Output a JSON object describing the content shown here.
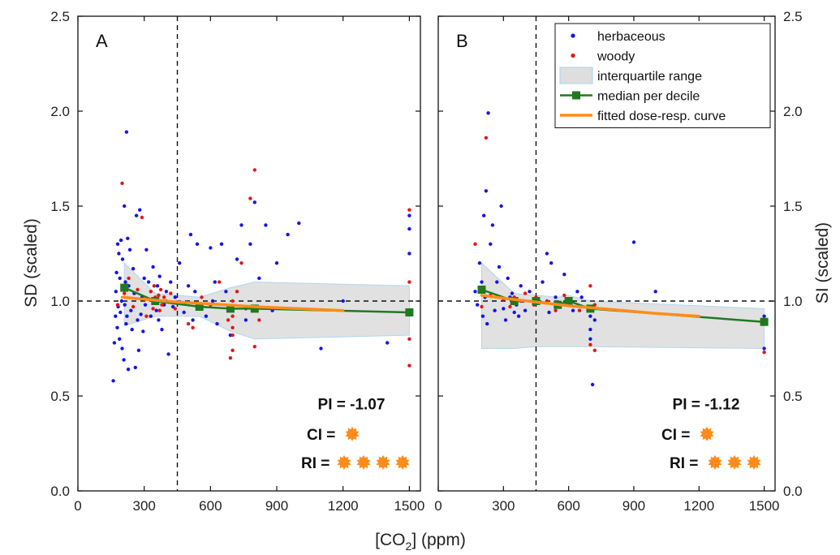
{
  "figure": {
    "xlabel": "[CO",
    "xlabel_sub": "2",
    "xlabel_tail": "] (ppm)",
    "ylabel_left": "SD (scaled)",
    "ylabel_right": "SI (scaled)"
  },
  "colors": {
    "herbaceous": "#1515e6",
    "woody": "#e61515",
    "iqr_fill": "#dedede",
    "iqr_stroke": "#a9d3ef",
    "median": "#1f7a1f",
    "fit": "#ff8c1a",
    "ci_star": "#ff8c1a"
  },
  "legend": {
    "items": [
      {
        "label": "herbaceous",
        "kind": "dot",
        "color": "#1515e6"
      },
      {
        "label": "woody",
        "kind": "dot",
        "color": "#e61515"
      },
      {
        "label": "interquartile range",
        "kind": "band",
        "color": "#dedede"
      },
      {
        "label": "median per decile",
        "kind": "median",
        "color": "#1f7a1f"
      },
      {
        "label": "fitted dose-resp. curve",
        "kind": "line",
        "color": "#ff8c1a"
      }
    ]
  },
  "chart_data": [
    {
      "panel": "A",
      "type": "scatter",
      "xlim": [
        0,
        1550
      ],
      "ylim": [
        0,
        2.5
      ],
      "xticks": [
        0,
        300,
        600,
        900,
        1200,
        1500
      ],
      "yticks": [
        0.0,
        0.5,
        1.0,
        1.5,
        2.0,
        2.5
      ],
      "ytick_labels": [
        "0.0",
        "0.5",
        "1.0",
        "1.5",
        "2.0",
        "2.5"
      ],
      "yaxis_labels": "left",
      "ref_vline_x": 450,
      "ref_hline_y": 1.0,
      "pi_text": "PI = -1.07",
      "ci_label": "CI =",
      "ci_stars": 1,
      "ri_label": "RI =",
      "ri_stars": 4,
      "median": {
        "x": [
          210,
          350,
          550,
          690,
          800,
          1500
        ],
        "y": [
          1.07,
          1.0,
          0.97,
          0.96,
          0.96,
          0.94
        ]
      },
      "iqr": {
        "x": [
          210,
          350,
          550,
          690,
          800,
          1500
        ],
        "upper": [
          1.2,
          1.04,
          1.02,
          1.07,
          1.1,
          1.08
        ],
        "lower": [
          0.87,
          0.92,
          0.92,
          0.84,
          0.8,
          0.82
        ]
      },
      "fit": {
        "x": [
          200,
          300,
          450,
          600,
          800,
          1000,
          1200
        ],
        "y": [
          1.02,
          1.01,
          0.995,
          0.985,
          0.97,
          0.96,
          0.95
        ]
      },
      "herbaceous": {
        "x": [
          160,
          165,
          170,
          172,
          175,
          178,
          180,
          182,
          185,
          188,
          190,
          192,
          195,
          198,
          200,
          202,
          205,
          208,
          210,
          212,
          215,
          218,
          220,
          222,
          225,
          228,
          230,
          235,
          240,
          245,
          250,
          255,
          260,
          265,
          270,
          275,
          280,
          285,
          290,
          295,
          300,
          305,
          310,
          320,
          330,
          340,
          350,
          355,
          360,
          365,
          370,
          380,
          390,
          400,
          410,
          420,
          430,
          440,
          460,
          480,
          500,
          510,
          520,
          530,
          540,
          560,
          580,
          600,
          610,
          620,
          630,
          650,
          670,
          690,
          700,
          720,
          740,
          760,
          780,
          800,
          820,
          850,
          880,
          900,
          950,
          1000,
          1100,
          1200,
          1400,
          1500,
          1500,
          1500
        ],
        "y": [
          0.58,
          0.78,
          0.92,
          1.05,
          1.15,
          0.86,
          1.3,
          0.97,
          1.25,
          0.8,
          1.12,
          0.94,
          1.32,
          1.0,
          0.75,
          1.22,
          1.08,
          0.69,
          1.5,
          0.98,
          1.1,
          0.88,
          1.89,
          0.92,
          1.33,
          0.64,
          1.08,
          1.27,
          0.95,
          0.85,
          1.17,
          1.04,
          0.65,
          1.45,
          0.9,
          0.74,
          1.48,
          0.93,
          1.02,
          0.84,
          1.12,
          0.98,
          1.27,
          1.1,
          0.92,
          1.18,
          1.0,
          0.95,
          1.08,
          0.9,
          1.13,
          0.85,
          0.98,
          1.05,
          0.72,
          1.1,
          0.97,
          1.02,
          1.2,
          0.94,
          1.08,
          1.35,
          0.9,
          1.05,
          1.3,
          0.98,
          0.92,
          1.28,
          1.0,
          1.1,
          0.88,
          1.3,
          1.05,
          0.82,
          0.95,
          1.22,
          1.4,
          0.9,
          1.3,
          1.52,
          1.12,
          1.4,
          0.95,
          1.2,
          1.35,
          1.41,
          0.75,
          1.0,
          0.78,
          1.45,
          1.25,
          1.38
        ]
      },
      "woody": {
        "x": [
          180,
          200,
          210,
          230,
          250,
          270,
          290,
          310,
          320,
          330,
          340,
          345,
          350,
          355,
          360,
          365,
          370,
          375,
          380,
          390,
          400,
          420,
          440,
          500,
          520,
          560,
          600,
          640,
          680,
          690,
          700,
          700,
          700,
          700,
          700,
          720,
          740,
          760,
          780,
          800,
          800,
          820,
          1500,
          1500,
          1500,
          1500,
          1500
        ],
        "y": [
          0.98,
          1.62,
          1.04,
          1.12,
          0.97,
          1.06,
          1.44,
          0.92,
          1.01,
          1.05,
          0.96,
          1.08,
          1.02,
          0.99,
          1.0,
          1.03,
          0.95,
          1.06,
          0.98,
          1.02,
          1.0,
          1.04,
          0.96,
          0.88,
          0.86,
          1.02,
          0.98,
          1.1,
          0.9,
          0.7,
          0.82,
          1.0,
          0.74,
          0.92,
          0.86,
          1.05,
          1.2,
          0.96,
          1.54,
          1.69,
          0.76,
          0.9,
          1.48,
          0.66,
          0.8,
          1.1,
          0.95
        ]
      }
    },
    {
      "panel": "B",
      "type": "scatter",
      "xlim": [
        0,
        1550
      ],
      "ylim": [
        0,
        2.5
      ],
      "xticks": [
        0,
        300,
        600,
        900,
        1200,
        1500
      ],
      "yticks": [
        0.0,
        0.5,
        1.0,
        1.5,
        2.0,
        2.5
      ],
      "ytick_labels": [
        "0.0",
        "0.5",
        "1.0",
        "1.5",
        "2.0",
        "2.5"
      ],
      "yaxis_labels": "right",
      "ref_vline_x": 450,
      "ref_hline_y": 1.0,
      "pi_text": "PI = -1.12",
      "ci_label": "CI =",
      "ci_stars": 1,
      "ri_label": "RI =",
      "ri_stars": 3,
      "median": {
        "x": [
          200,
          350,
          450,
          550,
          600,
          700,
          1500
        ],
        "y": [
          1.06,
          1.0,
          1.0,
          0.98,
          1.0,
          0.96,
          0.89
        ]
      },
      "iqr": {
        "x": [
          200,
          350,
          450,
          550,
          600,
          700,
          1500
        ],
        "upper": [
          1.2,
          1.04,
          1.03,
          1.02,
          1.03,
          1.0,
          0.96
        ],
        "lower": [
          0.75,
          0.75,
          0.76,
          0.76,
          0.76,
          0.76,
          0.75
        ]
      },
      "fit": {
        "x": [
          200,
          300,
          450,
          600,
          800,
          1000,
          1200
        ],
        "y": [
          1.03,
          1.015,
          0.995,
          0.975,
          0.955,
          0.935,
          0.92
        ]
      },
      "herbaceous": {
        "x": [
          170,
          180,
          190,
          200,
          205,
          210,
          215,
          220,
          225,
          230,
          240,
          250,
          260,
          270,
          280,
          290,
          300,
          310,
          320,
          330,
          340,
          350,
          360,
          370,
          380,
          390,
          400,
          420,
          480,
          500,
          510,
          520,
          540,
          560,
          580,
          600,
          620,
          640,
          660,
          700,
          700,
          700,
          710,
          720,
          900,
          1000,
          1500,
          1500
        ],
        "y": [
          1.05,
          0.98,
          1.2,
          1.1,
          0.92,
          1.45,
          1.02,
          1.58,
          0.88,
          1.99,
          1.3,
          1.4,
          0.95,
          1.1,
          1.18,
          1.5,
          0.96,
          0.9,
          1.12,
          1.02,
          1.04,
          0.94,
          0.98,
          0.92,
          1.08,
          1.0,
          0.95,
          1.05,
          1.1,
          1.25,
          0.94,
          1.2,
          1.02,
          0.97,
          1.14,
          1.0,
          0.95,
          1.05,
          1.02,
          0.85,
          0.92,
          0.8,
          0.56,
          0.9,
          1.31,
          1.05,
          0.75,
          0.92
        ]
      },
      "woody": {
        "x": [
          170,
          200,
          220,
          240,
          300,
          330,
          350,
          360,
          380,
          400,
          440,
          450,
          500,
          540,
          560,
          580,
          600,
          650,
          700,
          700,
          720,
          720,
          1500
        ],
        "y": [
          1.3,
          0.97,
          1.86,
          1.03,
          1.01,
          0.97,
          1.02,
          0.99,
          1.0,
          1.04,
          0.98,
          1.02,
          1.0,
          0.95,
          0.97,
          1.03,
          0.99,
          0.95,
          0.77,
          1.08,
          0.74,
          0.98,
          0.73
        ]
      }
    }
  ]
}
